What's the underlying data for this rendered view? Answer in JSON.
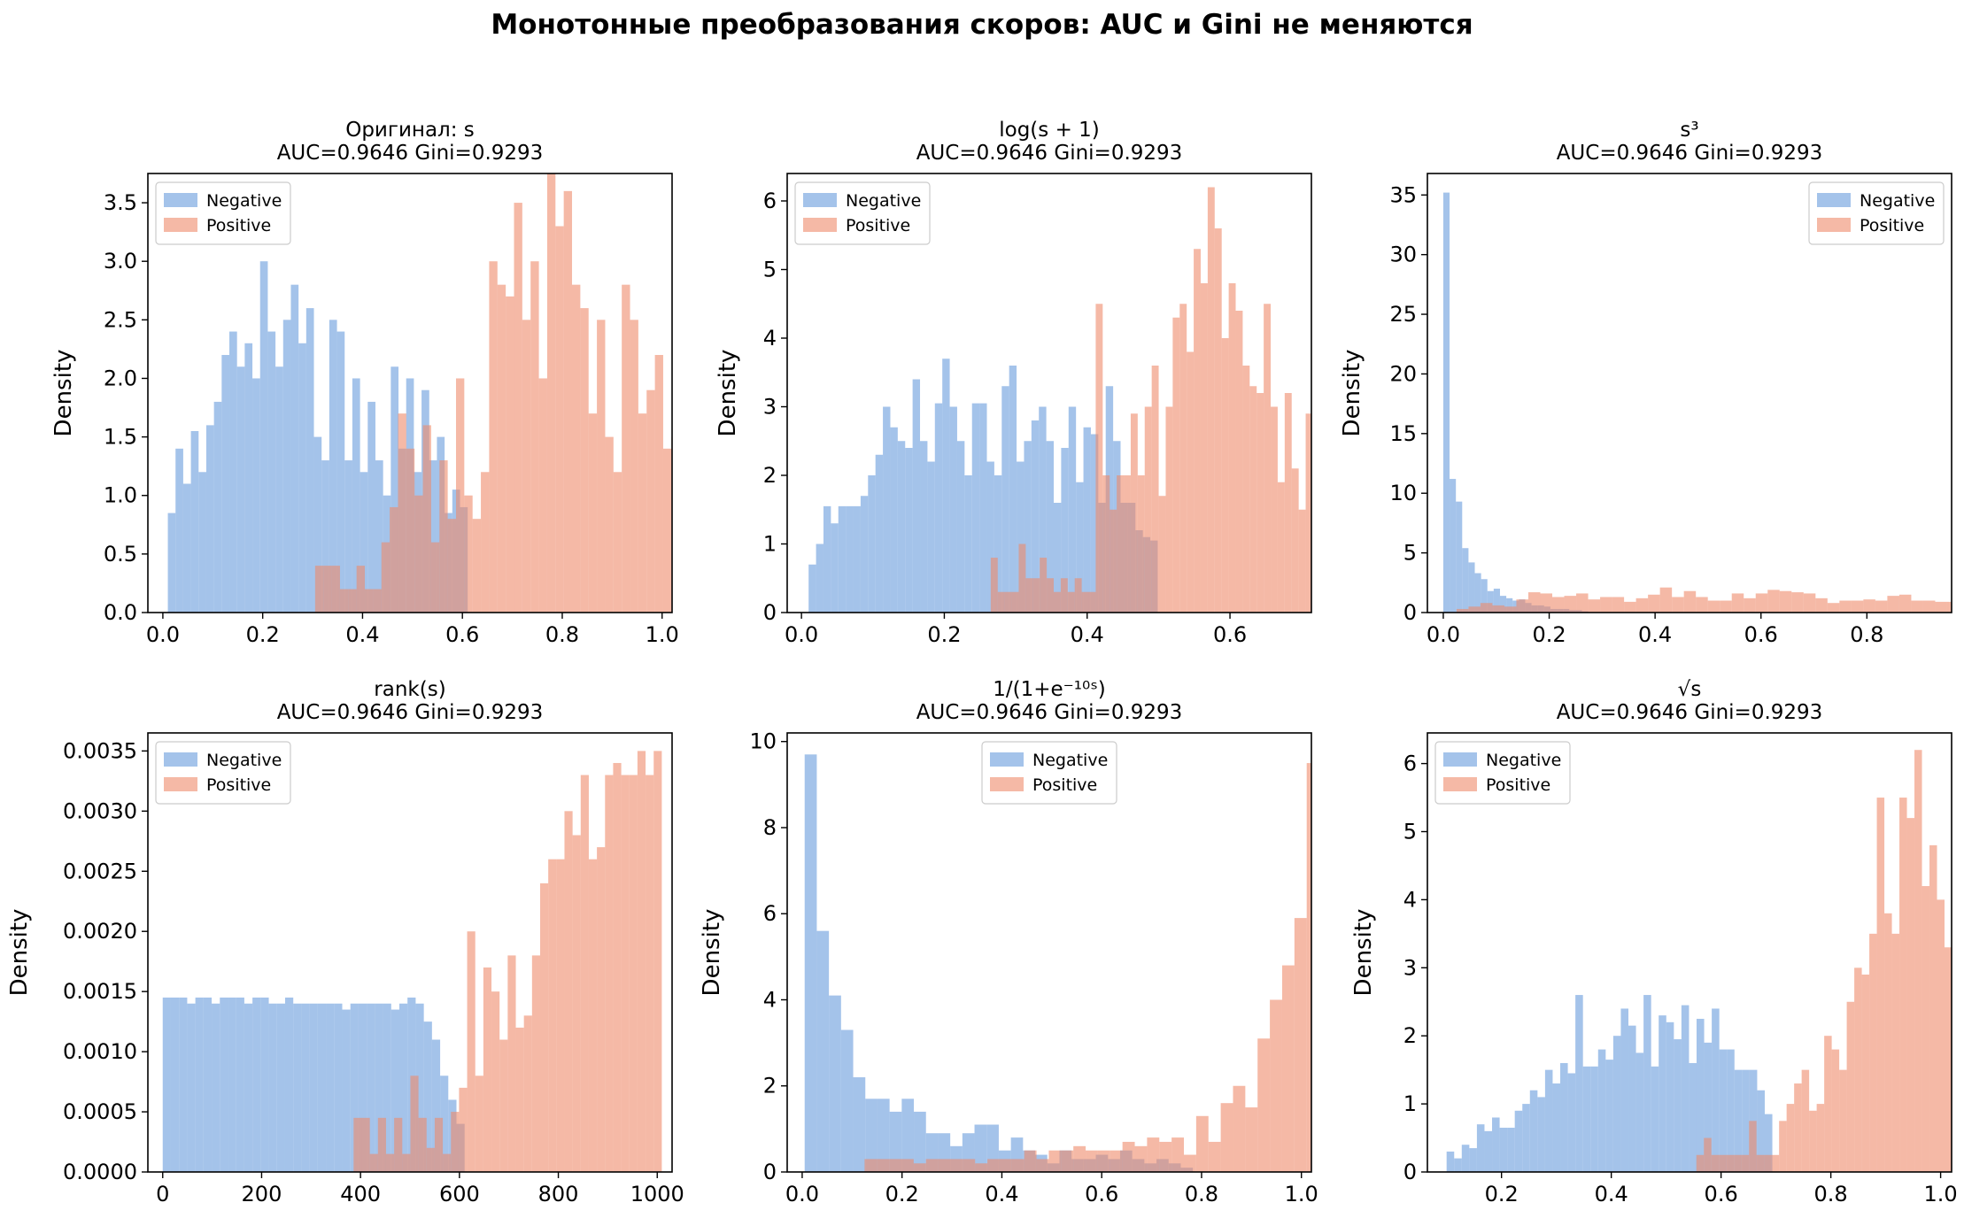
{
  "title": "Монотонные преобразования скоров: AUC и Gini не меняются",
  "colors": {
    "negative": "#7ea9e1",
    "positive": "#ef8b6a",
    "neg_alpha": 0.7,
    "pos_alpha": 0.6
  },
  "chart_data": [
    {
      "type": "bar",
      "title": [
        "Оригинал: s",
        "AUC=0.9646  Gini=0.9293"
      ],
      "ylabel": "Density",
      "legend_loc": "upper-left",
      "xlim": [
        -0.03,
        1.02
      ],
      "ylim": [
        0,
        3.75
      ],
      "xticks": [
        0.0,
        0.2,
        0.4,
        0.6,
        0.8,
        1.0
      ],
      "xtick_labels": [
        "0.0",
        "0.2",
        "0.4",
        "0.6",
        "0.8",
        "1.0"
      ],
      "yticks": [
        0.0,
        0.5,
        1.0,
        1.5,
        2.0,
        2.5,
        3.0,
        3.5
      ],
      "ytick_labels": [
        "0.0",
        "0.5",
        "1.0",
        "1.5",
        "2.0",
        "2.5",
        "3.0",
        "3.5"
      ],
      "series": [
        {
          "name": "Negative",
          "x_start": 0.01,
          "bin_width": 0.0154,
          "values": [
            0.85,
            1.4,
            1.1,
            1.55,
            1.2,
            1.6,
            1.8,
            2.2,
            2.4,
            2.1,
            2.3,
            2.0,
            3.0,
            2.4,
            2.1,
            2.5,
            2.8,
            2.3,
            2.6,
            1.5,
            1.3,
            2.5,
            2.4,
            1.3,
            2.0,
            1.2,
            1.8,
            1.3,
            1.0,
            2.1,
            1.4,
            2.0,
            1.2,
            1.9,
            1.3,
            1.5,
            0.85,
            1.05,
            0.9
          ]
        },
        {
          "name": "Positive",
          "x_start": 0.305,
          "bin_width": 0.0166,
          "values": [
            0.4,
            0.4,
            0.4,
            0.2,
            0.2,
            0.4,
            0.2,
            0.2,
            0.6,
            0.9,
            1.7,
            1.4,
            1.0,
            1.6,
            0.6,
            1.3,
            0.8,
            2.0,
            1.0,
            0.8,
            1.2,
            3.0,
            2.8,
            2.7,
            3.5,
            2.5,
            3.0,
            2.0,
            3.8,
            3.3,
            3.6,
            2.8,
            2.6,
            1.7,
            2.5,
            1.5,
            1.2,
            2.8,
            2.5,
            1.7,
            1.9,
            2.2,
            1.4,
            1.5,
            1.9,
            1.8,
            3.0,
            2.7,
            2.4,
            2.1,
            1.8,
            1.0,
            0.8,
            1.9,
            1.2,
            1.0,
            1.1,
            1.0,
            0.9,
            0.8,
            1.0,
            1.2
          ]
        }
      ]
    },
    {
      "type": "bar",
      "title": [
        "log(s + 1)",
        "AUC=0.9646  Gini=0.9293"
      ],
      "ylabel": "Density",
      "legend_loc": "upper-left",
      "xlim": [
        -0.02,
        0.714
      ],
      "ylim": [
        0,
        6.4
      ],
      "xticks": [
        0.0,
        0.2,
        0.4,
        0.6
      ],
      "xtick_labels": [
        "0.0",
        "0.2",
        "0.4",
        "0.6"
      ],
      "yticks": [
        0,
        1,
        2,
        3,
        4,
        5,
        6
      ],
      "ytick_labels": [
        "0",
        "1",
        "2",
        "3",
        "4",
        "5",
        "6"
      ],
      "series": [
        {
          "name": "Negative",
          "x_start": 0.01,
          "bin_width": 0.0104,
          "values": [
            0.7,
            1.0,
            1.55,
            1.3,
            1.55,
            1.55,
            1.55,
            1.7,
            2.0,
            2.3,
            3.0,
            2.7,
            2.5,
            2.4,
            3.4,
            2.5,
            2.2,
            3.05,
            3.7,
            3.0,
            2.5,
            2.0,
            3.05,
            3.05,
            2.2,
            2.0,
            3.3,
            3.6,
            2.2,
            2.5,
            2.8,
            3.0,
            2.5,
            1.6,
            2.4,
            3.0,
            1.9,
            2.7,
            2.6,
            1.6,
            3.3,
            2.5,
            1.6,
            1.6,
            1.2,
            1.1,
            1.05
          ]
        },
        {
          "name": "Positive",
          "x_start": 0.265,
          "bin_width": 0.0098,
          "values": [
            0.8,
            0.3,
            0.3,
            0.3,
            1.0,
            0.5,
            0.5,
            0.8,
            0.5,
            0.3,
            0.5,
            0.3,
            0.5,
            0.3,
            0.3,
            4.5,
            2.0,
            1.5,
            2.0,
            2.0,
            2.9,
            2.0,
            3.0,
            3.6,
            1.7,
            3.0,
            4.3,
            4.5,
            3.8,
            5.3,
            4.8,
            6.2,
            5.6,
            4.0,
            4.8,
            4.4,
            3.6,
            3.3,
            3.2,
            4.5,
            3.0,
            1.9,
            3.2,
            2.1,
            1.5,
            2.9,
            3.5,
            2.7,
            2.5,
            2.4,
            1.5,
            1.0,
            1.7,
            1.1,
            2.1,
            2.2
          ]
        }
      ]
    },
    {
      "type": "bar",
      "title": [
        "s³",
        "AUC=0.9646  Gini=0.9293"
      ],
      "ylabel": "Density",
      "legend_loc": "upper-right",
      "xlim": [
        -0.03,
        0.96
      ],
      "ylim": [
        0,
        36.8
      ],
      "xticks": [
        0.0,
        0.2,
        0.4,
        0.6,
        0.8
      ],
      "xtick_labels": [
        "0.0",
        "0.2",
        "0.4",
        "0.6",
        "0.8"
      ],
      "yticks": [
        0,
        5,
        10,
        15,
        20,
        25,
        30,
        35
      ],
      "ytick_labels": [
        "0",
        "5",
        "10",
        "15",
        "20",
        "25",
        "30",
        "35"
      ],
      "series": [
        {
          "name": "Negative",
          "x_start": 0.0,
          "bin_width": 0.0119,
          "values": [
            35.2,
            11.2,
            9.3,
            5.4,
            4.2,
            3.3,
            2.8,
            1.8,
            2.0,
            1.4,
            1.2,
            1.0,
            1.1,
            0.8,
            0.6,
            0.6,
            0.5,
            0.3,
            0.3,
            0.3,
            0.2,
            0.2,
            0.1
          ]
        },
        {
          "name": "Positive",
          "x_start": 0.025,
          "bin_width": 0.0226,
          "values": [
            0.3,
            0.5,
            0.8,
            0.6,
            0.5,
            1.1,
            1.7,
            1.6,
            1.3,
            1.4,
            1.6,
            1.1,
            1.3,
            1.3,
            0.9,
            1.2,
            1.5,
            2.1,
            1.3,
            1.8,
            1.3,
            1.0,
            1.0,
            1.6,
            1.2,
            1.6,
            1.9,
            1.8,
            1.7,
            1.6,
            1.2,
            0.8,
            1.0,
            1.0,
            1.1,
            1.0,
            1.4,
            1.5,
            1.0,
            1.0,
            0.9,
            0.9,
            0.6,
            0.7,
            0.5,
            0.3,
            0.3,
            0.3,
            0.5,
            0.3
          ]
        }
      ]
    },
    {
      "type": "bar",
      "title": [
        "rank(s)",
        "AUC=0.9646  Gini=0.9293"
      ],
      "ylabel": "Density",
      "legend_loc": "upper-left",
      "xlim": [
        -30,
        1030
      ],
      "ylim": [
        0,
        0.00365
      ],
      "xticks": [
        0,
        200,
        400,
        600,
        800,
        1000
      ],
      "xtick_labels": [
        "0",
        "200",
        "400",
        "600",
        "800",
        "1000"
      ],
      "yticks": [
        0,
        0.0005,
        0.001,
        0.0015,
        0.002,
        0.0025,
        0.003,
        0.0035
      ],
      "ytick_labels": [
        "0.0000",
        "0.0005",
        "0.0010",
        "0.0015",
        "0.0020",
        "0.0025",
        "0.0030",
        "0.0035"
      ],
      "series": [
        {
          "name": "Negative",
          "x_start": 0,
          "bin_width": 16.5,
          "values": [
            0.00145,
            0.00145,
            0.00145,
            0.0014,
            0.00145,
            0.00145,
            0.0014,
            0.00145,
            0.00145,
            0.00145,
            0.0014,
            0.00145,
            0.00145,
            0.0014,
            0.0014,
            0.00145,
            0.0014,
            0.0014,
            0.0014,
            0.0014,
            0.0014,
            0.0014,
            0.00135,
            0.0014,
            0.0014,
            0.0014,
            0.0014,
            0.0014,
            0.00135,
            0.0014,
            0.00145,
            0.0014,
            0.00125,
            0.0011,
            0.0008,
            0.0006,
            0.0004
          ]
        },
        {
          "name": "Positive",
          "x_start": 386,
          "bin_width": 16.4,
          "values": [
            0.00045,
            0.00045,
            0.00015,
            0.00045,
            0.00015,
            0.00045,
            0.00015,
            0.0008,
            0.00045,
            0.0002,
            0.00045,
            0.00015,
            0.0005,
            0.0007,
            0.002,
            0.0008,
            0.0017,
            0.0015,
            0.0011,
            0.0018,
            0.0012,
            0.0013,
            0.0018,
            0.0024,
            0.0026,
            0.0026,
            0.003,
            0.0028,
            0.0033,
            0.0026,
            0.0027,
            0.0033,
            0.0034,
            0.0033,
            0.0033,
            0.0035,
            0.0033,
            0.0035
          ]
        }
      ]
    },
    {
      "type": "bar",
      "title": [
        "1/(1+e⁻¹⁰ˢ)",
        "AUC=0.9646  Gini=0.9293"
      ],
      "ylabel": "Density",
      "legend_loc": "upper-center",
      "xlim": [
        -0.03,
        1.02
      ],
      "ylim": [
        0,
        10.2
      ],
      "xticks": [
        0.0,
        0.2,
        0.4,
        0.6,
        0.8,
        1.0
      ],
      "xtick_labels": [
        "0.0",
        "0.2",
        "0.4",
        "0.6",
        "0.8",
        "1.0"
      ],
      "yticks": [
        0,
        2,
        4,
        6,
        8,
        10
      ],
      "ytick_labels": [
        "0",
        "2",
        "4",
        "6",
        "8",
        "10"
      ],
      "series": [
        {
          "name": "Negative",
          "x_start": 0.005,
          "bin_width": 0.0243,
          "values": [
            9.7,
            5.6,
            4.1,
            3.3,
            2.2,
            1.7,
            1.7,
            1.4,
            1.7,
            1.4,
            0.9,
            0.9,
            0.6,
            0.9,
            1.1,
            1.1,
            0.5,
            0.8,
            0.5,
            0.4,
            0.2,
            0.5,
            0.3,
            0.3,
            0.4,
            0.3,
            0.5,
            0.3,
            0.2,
            0.3,
            0.2,
            0.1
          ]
        },
        {
          "name": "Positive",
          "x_start": 0.125,
          "bin_width": 0.0246,
          "values": [
            0.3,
            0.3,
            0.3,
            0.3,
            0.2,
            0.3,
            0.3,
            0.3,
            0.3,
            0.2,
            0.3,
            0.3,
            0.3,
            0.5,
            0.3,
            0.5,
            0.5,
            0.6,
            0.5,
            0.5,
            0.5,
            0.7,
            0.6,
            0.8,
            0.7,
            0.8,
            0.4,
            1.3,
            0.7,
            1.6,
            2.0,
            1.5,
            3.1,
            4.0,
            4.8,
            5.9,
            9.5
          ]
        }
      ]
    },
    {
      "type": "bar",
      "title": [
        "√s",
        "AUC=0.9646  Gini=0.9293"
      ],
      "ylabel": "Density",
      "legend_loc": "upper-left",
      "xlim": [
        0.065,
        1.02
      ],
      "ylim": [
        0,
        6.45
      ],
      "xticks": [
        0.2,
        0.4,
        0.6,
        0.8,
        1.0
      ],
      "xtick_labels": [
        "0.2",
        "0.4",
        "0.6",
        "0.8",
        "1.0"
      ],
      "yticks": [
        0,
        1,
        2,
        3,
        4,
        5,
        6
      ],
      "ytick_labels": [
        "0",
        "1",
        "2",
        "3",
        "4",
        "5",
        "6"
      ],
      "series": [
        {
          "name": "Negative",
          "x_start": 0.1,
          "bin_width": 0.0138,
          "values": [
            0.3,
            0.2,
            0.4,
            0.35,
            0.7,
            0.6,
            0.8,
            0.65,
            0.65,
            0.9,
            1.0,
            1.2,
            1.1,
            1.5,
            1.3,
            1.6,
            1.45,
            2.6,
            1.55,
            1.55,
            1.8,
            1.65,
            2.0,
            2.4,
            2.15,
            1.75,
            2.6,
            1.55,
            2.3,
            2.2,
            1.95,
            2.45,
            1.6,
            2.25,
            1.9,
            2.4,
            1.8,
            1.8,
            1.5,
            1.5,
            1.5,
            1.2,
            0.85
          ]
        },
        {
          "name": "Positive",
          "x_start": 0.555,
          "bin_width": 0.0137,
          "values": [
            0.25,
            0.5,
            0.25,
            0.25,
            0.25,
            0.25,
            0.25,
            0.75,
            0.25,
            0.25,
            0.25,
            0.75,
            1.0,
            1.3,
            1.5,
            0.9,
            1.0,
            2.0,
            1.8,
            1.5,
            2.5,
            3.0,
            2.9,
            3.5,
            5.5,
            3.8,
            3.5,
            5.5,
            5.2,
            6.2,
            4.2,
            4.8,
            4.0,
            3.3,
            4.7,
            4.2,
            2.6,
            4.1,
            3.1,
            2.7,
            3.5,
            2.2,
            1.9,
            2.1,
            1.5
          ]
        }
      ]
    }
  ]
}
